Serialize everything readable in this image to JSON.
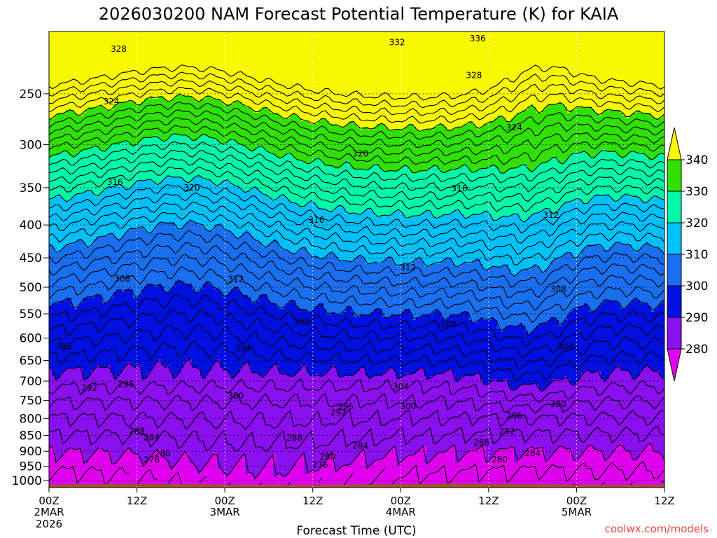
{
  "chart_data": {
    "type": "time-height contour",
    "title": "2026030200 NAM Forecast Potential Temperature (K) for KAIA",
    "xlabel": "Forecast Time (UTC)",
    "ylabel": "",
    "credit": "coolwx.com/models",
    "x_ticks": [
      {
        "hour": 0,
        "label": "00Z",
        "date": "2MAR",
        "year": "2026"
      },
      {
        "hour": 12,
        "label": "12Z",
        "date": "",
        "year": ""
      },
      {
        "hour": 24,
        "label": "00Z",
        "date": "3MAR",
        "year": ""
      },
      {
        "hour": 36,
        "label": "12Z",
        "date": "",
        "year": ""
      },
      {
        "hour": 48,
        "label": "00Z",
        "date": "4MAR",
        "year": ""
      },
      {
        "hour": 60,
        "label": "12Z",
        "date": "",
        "year": ""
      },
      {
        "hour": 72,
        "label": "00Z",
        "date": "5MAR",
        "year": ""
      },
      {
        "hour": 84,
        "label": "12Z",
        "date": "",
        "year": ""
      }
    ],
    "xlim": [
      0,
      84
    ],
    "y_ticks": [
      250,
      300,
      350,
      400,
      450,
      500,
      550,
      600,
      650,
      700,
      750,
      800,
      850,
      900,
      950,
      1000
    ],
    "ylim_hpa": [
      200,
      1025
    ],
    "colorbar": {
      "labels": [
        "280",
        "290",
        "300",
        "310",
        "320",
        "330",
        "340"
      ],
      "bands": [
        {
          "min": 270,
          "max": 280,
          "color": "#e000f0"
        },
        {
          "min": 280,
          "max": 290,
          "color": "#8a10f0"
        },
        {
          "min": 290,
          "max": 300,
          "color": "#0010e0"
        },
        {
          "min": 300,
          "max": 310,
          "color": "#1a6ef0"
        },
        {
          "min": 310,
          "max": 320,
          "color": "#00c0f8"
        },
        {
          "min": 320,
          "max": 330,
          "color": "#00f8a8"
        },
        {
          "min": 330,
          "max": 340,
          "color": "#30e000"
        },
        {
          "min": 340,
          "max": 350,
          "color": "#f8f800"
        }
      ]
    },
    "ground_color": "#a0522d",
    "contour_interval": 2,
    "contour_labels": [
      {
        "value": "328",
        "hour": 9.5,
        "hpa": 213
      },
      {
        "value": "332",
        "hour": 47.5,
        "hpa": 208
      },
      {
        "value": "336",
        "hour": 58.5,
        "hpa": 205
      },
      {
        "value": "328",
        "hour": 58.0,
        "hpa": 234
      },
      {
        "value": "324",
        "hour": 8.5,
        "hpa": 257
      },
      {
        "value": "324",
        "hour": 63.5,
        "hpa": 282
      },
      {
        "value": "320",
        "hour": 42.5,
        "hpa": 310
      },
      {
        "value": "316",
        "hour": 9.0,
        "hpa": 343
      },
      {
        "value": "320",
        "hour": 19.5,
        "hpa": 350
      },
      {
        "value": "316",
        "hour": 56.0,
        "hpa": 351
      },
      {
        "value": "312",
        "hour": 68.5,
        "hpa": 386
      },
      {
        "value": "316",
        "hour": 36.5,
        "hpa": 393
      },
      {
        "value": "312",
        "hour": 49.0,
        "hpa": 466
      },
      {
        "value": "308",
        "hour": 10.0,
        "hpa": 485
      },
      {
        "value": "312",
        "hour": 25.5,
        "hpa": 486
      },
      {
        "value": "308",
        "hour": 69.5,
        "hpa": 503
      },
      {
        "value": "308",
        "hour": 34.5,
        "hpa": 566
      },
      {
        "value": "308",
        "hour": 54.5,
        "hpa": 571
      },
      {
        "value": "300",
        "hour": 2.0,
        "hpa": 619
      },
      {
        "value": "304",
        "hour": 26.5,
        "hpa": 622
      },
      {
        "value": "304",
        "hour": 70.5,
        "hpa": 618
      },
      {
        "value": "296",
        "hour": 10.5,
        "hpa": 708
      },
      {
        "value": "292",
        "hour": 5.5,
        "hpa": 718
      },
      {
        "value": "304",
        "hour": 48.0,
        "hpa": 714
      },
      {
        "value": "300",
        "hour": 25.5,
        "hpa": 738
      },
      {
        "value": "300",
        "hour": 49.0,
        "hpa": 766
      },
      {
        "value": "296",
        "hour": 40.5,
        "hpa": 767
      },
      {
        "value": "292",
        "hour": 39.5,
        "hpa": 784
      },
      {
        "value": "300",
        "hour": 69.5,
        "hpa": 760
      },
      {
        "value": "296",
        "hour": 63.5,
        "hpa": 792
      },
      {
        "value": "288",
        "hour": 12.0,
        "hpa": 837
      },
      {
        "value": "284",
        "hour": 14.0,
        "hpa": 857
      },
      {
        "value": "292",
        "hour": 62.5,
        "hpa": 839
      },
      {
        "value": "288",
        "hour": 33.5,
        "hpa": 858
      },
      {
        "value": "284",
        "hour": 42.5,
        "hpa": 883
      },
      {
        "value": "288",
        "hour": 59.0,
        "hpa": 873
      },
      {
        "value": "280",
        "hour": 15.5,
        "hpa": 907
      },
      {
        "value": "284",
        "hour": 66.0,
        "hpa": 906
      },
      {
        "value": "276",
        "hour": 14.0,
        "hpa": 928
      },
      {
        "value": "280",
        "hour": 38.0,
        "hpa": 918
      },
      {
        "value": "280",
        "hour": 61.5,
        "hpa": 927
      },
      {
        "value": "276",
        "hour": 37.0,
        "hpa": 945
      }
    ]
  }
}
